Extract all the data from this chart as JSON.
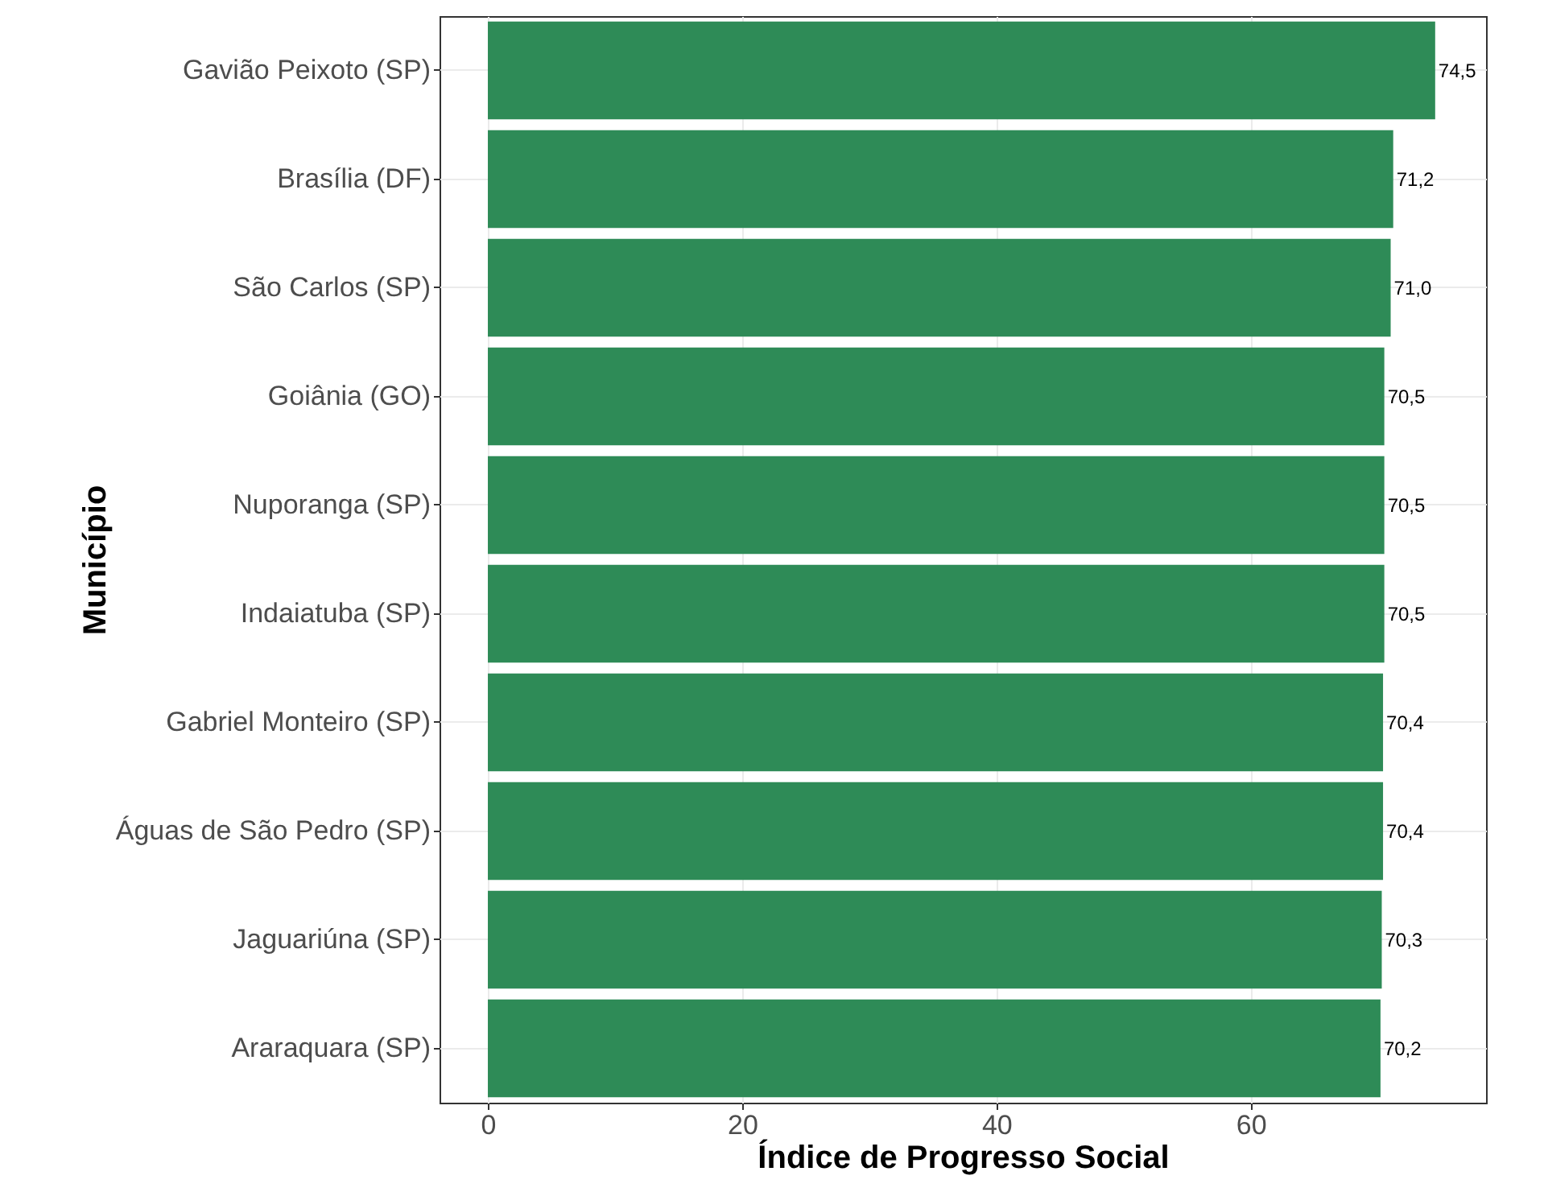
{
  "chart_data": {
    "type": "bar",
    "orientation": "horizontal",
    "xlabel": "Índice de Progresso Social",
    "ylabel": "Município",
    "categories": [
      "Gavião Peixoto (SP)",
      "Brasília (DF)",
      "São Carlos (SP)",
      "Goiânia (GO)",
      "Nuporanga (SP)",
      "Indaiatuba (SP)",
      "Gabriel Monteiro (SP)",
      "Águas de São Pedro (SP)",
      "Jaguariúna (SP)",
      "Araraquara (SP)"
    ],
    "values": [
      74.5,
      71.2,
      71.0,
      70.5,
      70.5,
      70.5,
      70.4,
      70.4,
      70.3,
      70.2
    ],
    "value_labels": [
      "74,5",
      "71,2",
      "71,0",
      "70,5",
      "70,5",
      "70,5",
      "70,4",
      "70,4",
      "70,3",
      "70,2"
    ],
    "color": "#2e8b57",
    "xlim": [
      -3.8,
      78.5
    ],
    "xticks": [
      0,
      20,
      40,
      60
    ],
    "grid": true
  }
}
